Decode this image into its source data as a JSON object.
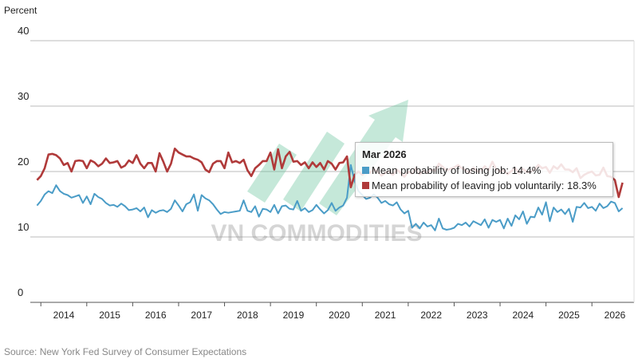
{
  "chart_data": {
    "type": "line",
    "ylabel": "Percent",
    "ylim": [
      0,
      40
    ],
    "yticks": [
      "0",
      "10",
      "20",
      "30",
      "40"
    ],
    "xticks": [
      "2014",
      "2015",
      "2016",
      "2017",
      "2018",
      "2019",
      "2020",
      "2021",
      "2022",
      "2023",
      "2024",
      "2025",
      "2026"
    ],
    "grid": "horizontal",
    "frequency": "monthly",
    "dates": [
      "2013-06",
      "2013-07",
      "2013-08",
      "2013-09",
      "2013-10",
      "2013-11",
      "2013-12",
      "2014-01",
      "2014-02",
      "2014-03",
      "2014-04",
      "2014-05",
      "2014-06",
      "2014-07",
      "2014-08",
      "2014-09",
      "2014-10",
      "2014-11",
      "2014-12",
      "2015-01",
      "2015-02",
      "2015-03",
      "2015-04",
      "2015-05",
      "2015-06",
      "2015-07",
      "2015-08",
      "2015-09",
      "2015-10",
      "2015-11",
      "2015-12",
      "2016-01",
      "2016-02",
      "2016-03",
      "2016-04",
      "2016-05",
      "2016-06",
      "2016-07",
      "2016-08",
      "2016-09",
      "2016-10",
      "2016-11",
      "2016-12",
      "2017-01",
      "2017-02",
      "2017-03",
      "2017-04",
      "2017-05",
      "2017-06",
      "2017-07",
      "2017-08",
      "2017-09",
      "2017-10",
      "2017-11",
      "2017-12",
      "2018-01",
      "2018-02",
      "2018-03",
      "2018-04",
      "2018-05",
      "2018-06",
      "2018-07",
      "2018-08",
      "2018-09",
      "2018-10",
      "2018-11",
      "2018-12",
      "2019-01",
      "2019-02",
      "2019-03",
      "2019-04",
      "2019-05",
      "2019-06",
      "2019-07",
      "2019-08",
      "2019-09",
      "2019-10",
      "2019-11",
      "2019-12",
      "2020-01",
      "2020-02",
      "2020-03",
      "2020-04",
      "2020-05",
      "2020-06",
      "2020-07",
      "2020-08",
      "2020-09",
      "2020-10",
      "2020-11",
      "2020-12",
      "2021-01",
      "2021-02",
      "2021-03",
      "2021-04",
      "2021-05",
      "2021-06",
      "2021-07",
      "2021-08",
      "2021-09",
      "2021-10",
      "2021-11",
      "2021-12",
      "2022-01",
      "2022-02",
      "2022-03",
      "2022-04",
      "2022-05",
      "2022-06",
      "2022-07",
      "2022-08",
      "2022-09",
      "2022-10",
      "2022-11",
      "2022-12",
      "2023-01",
      "2023-02",
      "2023-03",
      "2023-04",
      "2023-05",
      "2023-06",
      "2023-07",
      "2023-08",
      "2023-09",
      "2023-10",
      "2023-11",
      "2023-12",
      "2024-01",
      "2024-02",
      "2024-03",
      "2024-04",
      "2024-05",
      "2024-06",
      "2024-07",
      "2024-08",
      "2024-09",
      "2024-10",
      "2024-11",
      "2024-12",
      "2025-01",
      "2025-02",
      "2025-03",
      "2025-04",
      "2025-05",
      "2025-06",
      "2025-07",
      "2025-08",
      "2025-09",
      "2025-10",
      "2025-11",
      "2025-12",
      "2026-01",
      "2026-02",
      "2026-03"
    ],
    "series": [
      {
        "name": "Mean probability of losing job",
        "color": "#4a9cc7",
        "values": [
          14.8,
          15.5,
          16.5,
          17.0,
          16.7,
          17.9,
          17.0,
          16.6,
          16.4,
          16.0,
          16.2,
          16.4,
          15.2,
          16.2,
          15.0,
          16.6,
          16.1,
          15.8,
          15.2,
          14.8,
          14.9,
          14.6,
          15.1,
          14.7,
          14.1,
          14.2,
          14.4,
          13.9,
          14.5,
          13.0,
          14.1,
          13.7,
          14.0,
          14.1,
          13.8,
          14.3,
          15.6,
          14.8,
          13.9,
          15.0,
          15.3,
          16.5,
          14.0,
          16.4,
          15.9,
          15.6,
          15.0,
          14.2,
          13.5,
          13.8,
          13.7,
          13.8,
          13.9,
          14.0,
          15.6,
          14.0,
          13.8,
          14.7,
          13.1,
          14.3,
          14.2,
          13.8,
          14.9,
          13.6,
          14.7,
          14.8,
          14.3,
          14.2,
          15.5,
          14.0,
          14.4,
          13.8,
          14.1,
          14.9,
          14.2,
          13.6,
          14.1,
          15.2,
          14.0,
          14.5,
          14.8,
          16.0,
          21.0,
          18.5,
          17.0,
          16.4,
          15.8,
          16.0,
          16.5,
          16.0,
          15.2,
          15.5,
          15.0,
          14.8,
          15.3,
          14.2,
          13.6,
          14.0,
          11.4,
          12.0,
          11.3,
          12.2,
          11.6,
          11.8,
          11.0,
          12.8,
          11.3,
          11.1,
          11.2,
          11.4,
          12.0,
          11.8,
          12.2,
          11.6,
          12.4,
          12.1,
          11.8,
          12.7,
          11.4,
          12.6,
          12.3,
          12.6,
          11.3,
          12.8,
          11.7,
          13.3,
          12.7,
          13.9,
          12.0,
          13.1,
          13.0,
          14.5,
          13.4,
          15.3,
          12.4,
          14.5,
          13.8,
          14.2,
          13.5,
          14.3,
          12.3,
          14.6,
          14.5,
          15.2,
          14.4,
          14.6,
          14.0,
          15.1,
          14.4,
          14.7,
          15.4,
          15.2,
          13.9,
          14.4
        ]
      },
      {
        "name": "Mean probability of leaving job voluntarily",
        "color": "#b03a3a",
        "values": [
          18.7,
          19.3,
          20.5,
          22.6,
          22.7,
          22.5,
          22.0,
          21.0,
          21.3,
          20.0,
          21.6,
          21.7,
          21.6,
          20.5,
          21.7,
          21.4,
          20.8,
          21.2,
          22.0,
          21.3,
          21.4,
          21.6,
          20.6,
          20.9,
          21.7,
          21.3,
          22.5,
          21.2,
          20.5,
          21.3,
          21.3,
          20.0,
          22.8,
          21.5,
          20.0,
          21.2,
          23.5,
          22.9,
          22.6,
          22.3,
          22.3,
          22.0,
          21.8,
          21.4,
          20.3,
          19.9,
          21.2,
          21.6,
          21.6,
          20.5,
          22.9,
          21.4,
          21.6,
          21.3,
          21.8,
          20.2,
          19.3,
          20.5,
          21.0,
          21.6,
          21.6,
          22.9,
          20.3,
          23.4,
          20.5,
          22.3,
          23.0,
          21.5,
          21.6,
          21.0,
          21.4,
          20.5,
          21.4,
          20.7,
          21.3,
          20.3,
          21.6,
          21.2,
          20.3,
          21.3,
          21.4,
          22.3,
          17.6,
          19.5,
          20.0,
          19.5,
          20.0,
          19.8,
          20.3,
          20.0,
          19.4,
          19.8,
          20.0,
          19.5,
          20.3,
          19.8,
          19.2,
          20.0,
          19.7,
          20.5,
          19.6,
          20.1,
          19.8,
          20.3,
          20.1,
          21.2,
          20.7,
          20.2,
          20.4,
          20.6,
          21.0,
          20.5,
          20.2,
          19.8,
          20.6,
          20.0,
          20.1,
          20.8,
          20.2,
          21.5,
          20.3,
          20.0,
          20.2,
          19.6,
          20.1,
          20.5,
          19.7,
          20.4,
          19.9,
          20.0,
          20.3,
          21.0,
          20.5,
          20.7,
          19.8,
          20.8,
          20.4,
          21.1,
          20.3,
          20.3,
          19.9,
          20.5,
          19.0,
          19.5,
          19.8,
          20.0,
          19.4,
          19.5,
          20.6,
          19.3,
          19.2,
          18.7,
          16.1,
          18.3
        ]
      }
    ],
    "tooltip": {
      "title": "Mar 2026",
      "rows": [
        "Mean probability of losing job: 14.4%",
        "Mean probability of leaving job voluntarily: 18.3%"
      ]
    },
    "source": "Source: New York Fed Survey of Consumer Expectations",
    "watermark": "VN COMMODITIES"
  }
}
